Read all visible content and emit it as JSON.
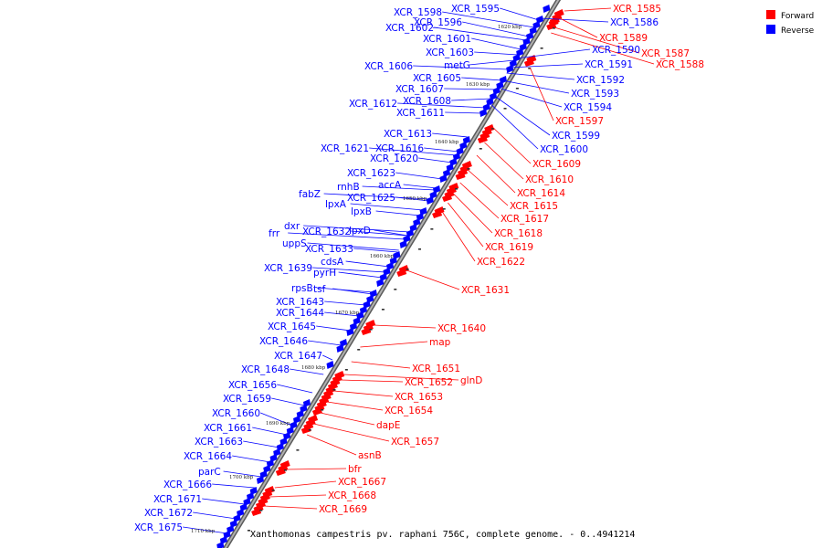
{
  "caption": "Xanthomonas campestris pv. raphani 756C, complete genome. - 0..4941214",
  "legend": [
    {
      "label": "Forward",
      "color": "#ff0000"
    },
    {
      "label": "Reverse",
      "color": "#0000ff"
    }
  ],
  "colors": {
    "forward": "#ff0000",
    "reverse": "#0000ff",
    "backbone": "#8c8c8c"
  },
  "ticks": [
    "1620 kbp",
    "1630 kbp",
    "1640 kbp",
    "1650 kbp",
    "1660 kbp",
    "1670 kbp",
    "1680 kbp",
    "1690 kbp",
    "1700 kbp",
    "1710 kbp"
  ],
  "reverse_genes": [
    "XCR_1586",
    "XCR_1590",
    "XCR_1591",
    "XCR_1592",
    "XCR_1593",
    "XCR_1594",
    "XCR_1599",
    "XCR_1600",
    "XCR_1595",
    "XCR_1598",
    "XCR_1596",
    "XCR_1602",
    "XCR_1601",
    "XCR_1603",
    "metG",
    "XCR_1606",
    "XCR_1605",
    "XCR_1607",
    "XCR_1608",
    "XCR_1612",
    "XCR_1611",
    "XCR_1613",
    "XCR_1621",
    "XCR_1616",
    "XCR_1620",
    "XCR_1623",
    "rnhB",
    "accA",
    "fabZ",
    "XCR_1625",
    "lpxA",
    "lpxB",
    "dxr",
    "XCR_1632",
    "lpxD",
    "frr",
    "uppS",
    "XCR_1633",
    "cdsA",
    "XCR_1639",
    "pyrH",
    "rpsB",
    "tsf",
    "XCR_1643",
    "XCR_1644",
    "XCR_1645",
    "XCR_1646",
    "XCR_1647",
    "XCR_1648",
    "XCR_1656",
    "XCR_1659",
    "XCR_1660",
    "XCR_1661",
    "XCR_1663",
    "XCR_1664",
    "parC",
    "XCR_1666",
    "XCR_1671",
    "XCR_1672",
    "XCR_1675"
  ],
  "forward_genes": [
    "XCR_1585",
    "XCR_1589",
    "XCR_1587",
    "XCR_1588",
    "XCR_1597",
    "XCR_1609",
    "XCR_1610",
    "XCR_1614",
    "XCR_1615",
    "XCR_1617",
    "XCR_1618",
    "XCR_1619",
    "XCR_1622",
    "XCR_1631",
    "XCR_1640",
    "map",
    "XCR_1651",
    "glnD",
    "XCR_1652",
    "XCR_1653",
    "XCR_1654",
    "dapE",
    "XCR_1657",
    "asnB",
    "bfr",
    "XCR_1667",
    "XCR_1668",
    "XCR_1669"
  ]
}
